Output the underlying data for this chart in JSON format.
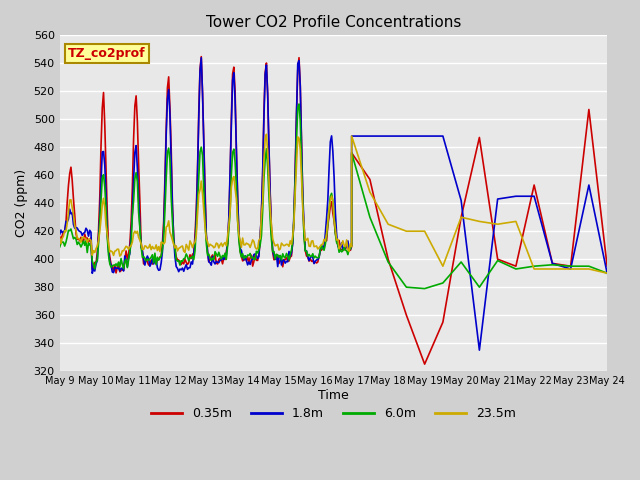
{
  "title": "Tower CO2 Profile Concentrations",
  "xlabel": "Time",
  "ylabel": "CO2 (ppm)",
  "ylim": [
    320,
    560
  ],
  "yticks": [
    320,
    340,
    360,
    380,
    400,
    420,
    440,
    460,
    480,
    500,
    520,
    540,
    560
  ],
  "annotation_text": "TZ_co2prof",
  "fig_facecolor": "#d0d0d0",
  "plot_facecolor": "#e8e8e8",
  "colors": {
    "0.35m": "#cc0000",
    "1.8m": "#0000cc",
    "6.0m": "#00aa00",
    "23.5m": "#ccaa00"
  },
  "x_labels": [
    "May 9",
    "May 10",
    "May 11",
    "May 12",
    "May 13",
    "May 14",
    "May 15",
    "May 16",
    "May 17",
    "May 18",
    "May 19",
    "May 20",
    "May 21",
    "May 22",
    "May 23",
    "May 24"
  ],
  "legend_labels": [
    "0.35m",
    "1.8m",
    "6.0m",
    "23.5m"
  ]
}
